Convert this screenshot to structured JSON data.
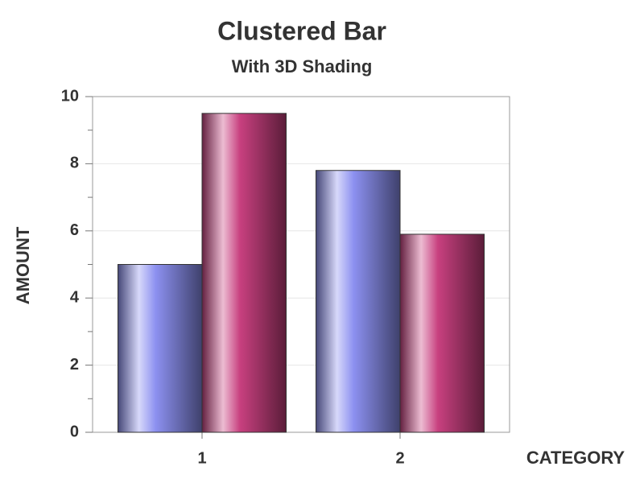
{
  "chart_data": {
    "type": "bar",
    "title": "Clustered Bar",
    "subtitle": "With 3D Shading",
    "x_label": "CATEGORY",
    "y_label": "AMOUNT",
    "categories": [
      "1",
      "2"
    ],
    "series": [
      {
        "color": "#8c90f0",
        "values": [
          5,
          7.8
        ]
      },
      {
        "color": "#c8407f",
        "values": [
          9.5,
          5.9
        ]
      }
    ],
    "ylim": [
      0,
      10
    ],
    "yticks": [
      0,
      2,
      4,
      6,
      8,
      10
    ],
    "minor_yticks": [
      1,
      3,
      5,
      7,
      9
    ],
    "grid": true
  }
}
